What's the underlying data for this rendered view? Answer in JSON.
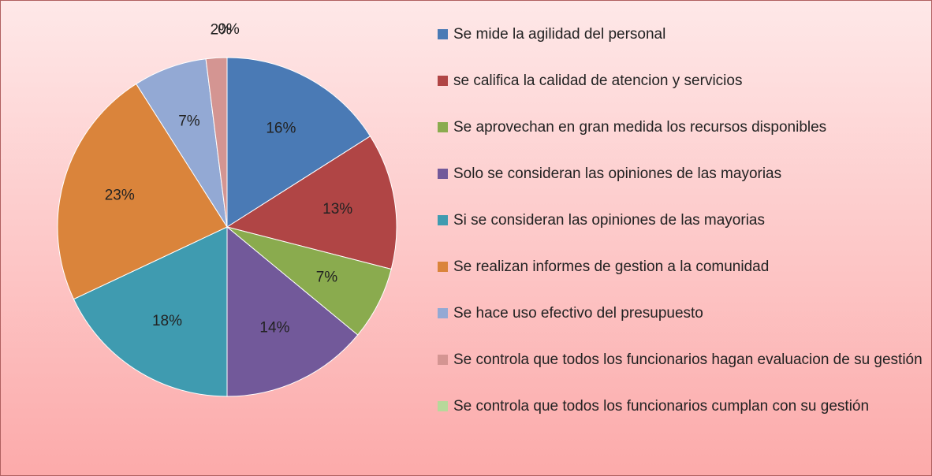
{
  "chart_data": {
    "type": "pie",
    "categories": [
      "Se mide la agilidad del personal",
      "se califica la calidad de atencion y servicios",
      "Se aprovechan en gran medida los recursos disponibles",
      "Solo se consideran las opiniones de las mayorias",
      "Si se consideran las opiniones de las mayorias",
      "Se realizan informes de gestion a la comunidad",
      "Se hace uso efectivo del presupuesto",
      "Se controla que todos los funcionarios hagan evaluacion de su gestión",
      "Se controla que todos los funcionarios cumplan con su gestión"
    ],
    "values": [
      16,
      13,
      7,
      14,
      18,
      23,
      7,
      2,
      0
    ],
    "value_labels": [
      "16%",
      "13%",
      "7%",
      "14%",
      "18%",
      "23%",
      "7%",
      "2%",
      "0%"
    ],
    "colors": [
      "#4a7ab5",
      "#b04545",
      "#8aab4e",
      "#72599a",
      "#3f9bb0",
      "#da843b",
      "#93a9d4",
      "#d49592",
      "#b7d89a"
    ],
    "legend": "right"
  }
}
